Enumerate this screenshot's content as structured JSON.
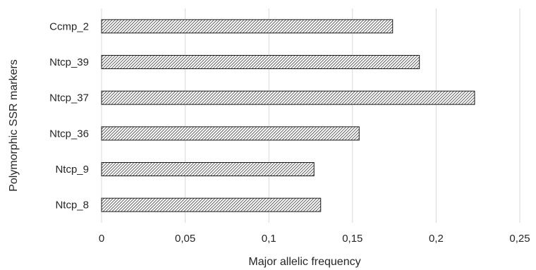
{
  "chart_data": {
    "type": "bar",
    "orientation": "horizontal",
    "categories": [
      "Ccmp_2",
      "Ntcp_39",
      "Ntcp_37",
      "Ntcp_36",
      "Ntcp_9",
      "Ntcp_8"
    ],
    "values": [
      0.174,
      0.19,
      0.223,
      0.154,
      0.127,
      0.131
    ],
    "xlabel": "Major allelic frequency",
    "ylabel": "Polymorphic SSR markers",
    "xlim": [
      0,
      0.25
    ],
    "xticks": [
      0,
      0.05,
      0.1,
      0.15,
      0.2,
      0.25
    ],
    "xtick_labels": [
      "0",
      "0,05",
      "0,1",
      "0,15",
      "0,2",
      "0,25"
    ],
    "grid": "vertical",
    "bar_fill": "hatched",
    "colors": {
      "bar_fill": "#ffffff",
      "bar_hatch": "#3a3a3a",
      "bar_stroke": "#1a1a1a",
      "grid": "#d9d9d9",
      "text": "#262626"
    }
  }
}
